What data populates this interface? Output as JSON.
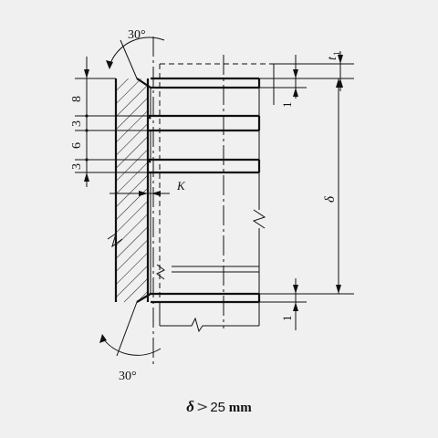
{
  "drawing": {
    "angle_top": "30°",
    "angle_bottom": "30°",
    "dim_8": "8",
    "dim_3a": "3",
    "dim_6": "6",
    "dim_3b": "3",
    "dim_t1": "t",
    "dim_t1_sub": "1",
    "dim_1_top": "1",
    "dim_1_bottom": "1",
    "dim_delta": "δ",
    "label_k": "K"
  },
  "caption": {
    "symbol": "δ",
    "operator": ">",
    "value": "25",
    "unit": "mm"
  }
}
